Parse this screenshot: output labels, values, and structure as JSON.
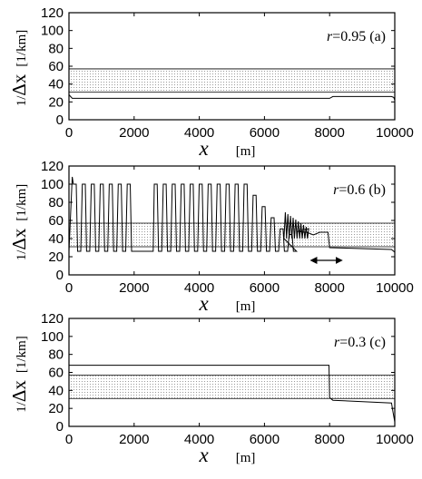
{
  "chart_data": [
    {
      "type": "line",
      "panel": "a",
      "annotation": {
        "var": "r",
        "rest": "=0.95 (a)"
      },
      "xlabel": {
        "var": "x",
        "unit": "[m]"
      },
      "ylabel": {
        "prefix": "1/",
        "var": "Δx",
        "unit": "[1/km]"
      },
      "xlim": [
        0,
        10000
      ],
      "ylim": [
        0,
        120
      ],
      "xticks": [
        0,
        2000,
        4000,
        6000,
        8000,
        10000
      ],
      "yticks": [
        0,
        20,
        40,
        60,
        80,
        100,
        120
      ],
      "band": [
        31,
        57
      ],
      "series": [
        {
          "x": [
            0,
            100,
            200,
            7800,
            8000,
            8100,
            9900,
            9970,
            10000
          ],
          "y": [
            28,
            24,
            24,
            24,
            24,
            26,
            26,
            25,
            22
          ]
        }
      ]
    },
    {
      "type": "line",
      "panel": "b",
      "annotation": {
        "var": "r",
        "rest": "=0.6 (b)"
      },
      "xlabel": {
        "var": "x",
        "unit": "[m]"
      },
      "ylabel": {
        "prefix": "1/",
        "var": "Δx",
        "unit": "[1/km]"
      },
      "xlim": [
        0,
        10000
      ],
      "ylim": [
        0,
        120
      ],
      "xticks": [
        0,
        2000,
        4000,
        6000,
        8000,
        10000
      ],
      "yticks": [
        0,
        20,
        40,
        60,
        80,
        100,
        120
      ],
      "band": [
        31,
        57
      ],
      "arrow_range": [
        7450,
        8350
      ],
      "oscillation": {
        "x_start": 100,
        "x_end": 7000,
        "low": 26,
        "high": 100,
        "peaks": 25,
        "gap": [
          1950,
          2400
        ]
      },
      "series": [
        {
          "x": [
            0,
            100,
            200,
            7000,
            7300,
            7500,
            7700,
            7950,
            8000,
            9900,
            10000
          ],
          "y": [
            26,
            108,
            100,
            48,
            47,
            44,
            47,
            47,
            30,
            28,
            25
          ]
        }
      ]
    },
    {
      "type": "line",
      "panel": "c",
      "annotation": {
        "var": "r",
        "rest": "=0.3 (c)"
      },
      "xlabel": {
        "var": "x",
        "unit": "[m]"
      },
      "ylabel": {
        "prefix": "1/",
        "var": "Δx",
        "unit": "[1/km]"
      },
      "xlim": [
        0,
        10000
      ],
      "ylim": [
        0,
        120
      ],
      "xticks": [
        0,
        2000,
        4000,
        6000,
        8000,
        10000
      ],
      "yticks": [
        0,
        20,
        40,
        60,
        80,
        100,
        120
      ],
      "band": [
        31,
        57
      ],
      "series": [
        {
          "x": [
            0,
            7980,
            8000,
            8100,
            9900,
            9950,
            10000
          ],
          "y": [
            68,
            68,
            32,
            29,
            26,
            15,
            5
          ]
        }
      ]
    }
  ]
}
